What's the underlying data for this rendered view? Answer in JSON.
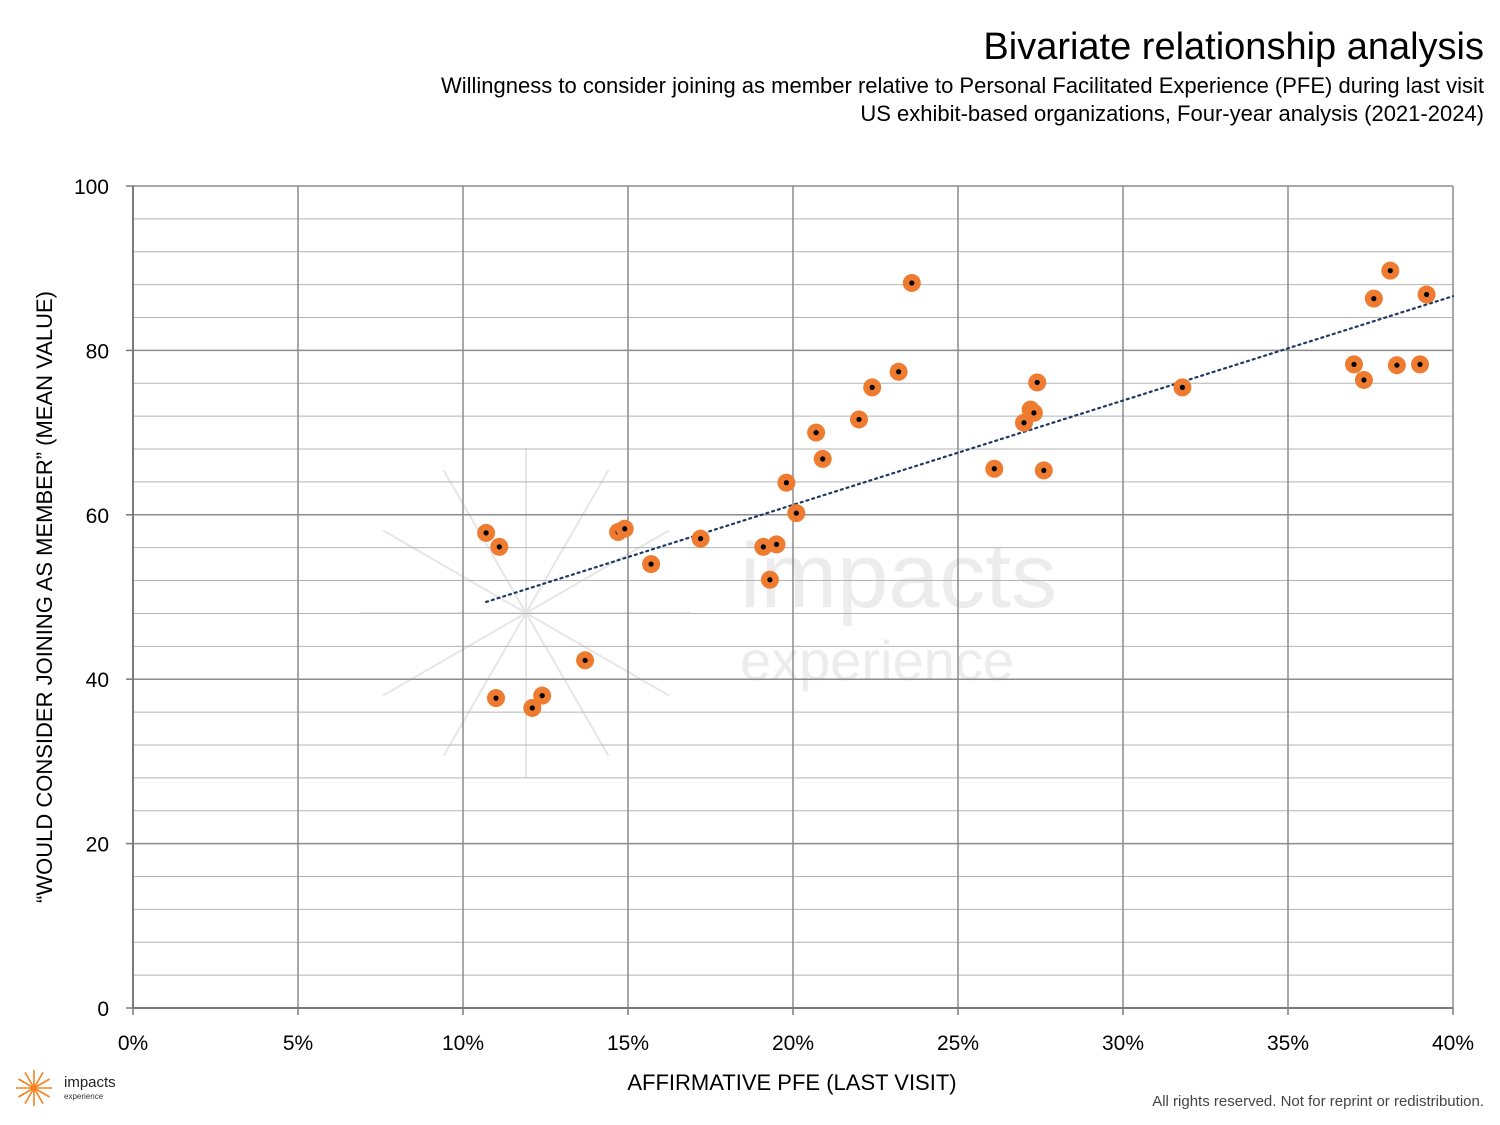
{
  "header": {
    "title": "Bivariate relationship analysis",
    "subtitle_1": "Willingness to consider joining as member relative to Personal Facilitated Experience (PFE) during last visit",
    "subtitle_2": "US exhibit-based organizations, Four-year analysis (2021-2024)"
  },
  "watermark": {
    "line1": "impacts",
    "line2": "experience"
  },
  "logo": {
    "name": "impacts",
    "tagline": "experience",
    "icon": "sunburst-icon"
  },
  "footer": {
    "rights": "All rights reserved. Not for reprint or redistribution."
  },
  "colors": {
    "point": "#ee7b30",
    "point_center": "#000000",
    "trendline": "#1f3864",
    "grid": "#a0a0a0",
    "logo_accent": "#f58220"
  },
  "chart_data": {
    "type": "scatter",
    "xlabel": "AFFIRMATIVE PFE (LAST VISIT)",
    "ylabel": "“WOULD CONSIDER JOINING AS MEMBER” (MEAN VALUE)",
    "xlim": [
      0,
      0.4
    ],
    "ylim": [
      0,
      100
    ],
    "x_ticks": [
      0,
      0.05,
      0.1,
      0.15,
      0.2,
      0.25,
      0.3,
      0.35,
      0.4
    ],
    "x_tick_labels": [
      "0%",
      "5%",
      "10%",
      "15%",
      "20%",
      "25%",
      "30%",
      "35%",
      "40%"
    ],
    "y_ticks": [
      0,
      20,
      40,
      60,
      80,
      100
    ],
    "y_tick_labels": [
      "0",
      "20",
      "40",
      "60",
      "80",
      "100"
    ],
    "grid": true,
    "trendline": {
      "style": "dotted",
      "x": [
        0.107,
        0.4
      ],
      "y": [
        49.4,
        86.6
      ]
    },
    "points": [
      {
        "x": 0.107,
        "y": 57.8
      },
      {
        "x": 0.111,
        "y": 56.1
      },
      {
        "x": 0.11,
        "y": 37.7
      },
      {
        "x": 0.121,
        "y": 36.5
      },
      {
        "x": 0.124,
        "y": 38.0
      },
      {
        "x": 0.137,
        "y": 42.3
      },
      {
        "x": 0.147,
        "y": 57.9
      },
      {
        "x": 0.149,
        "y": 58.3
      },
      {
        "x": 0.157,
        "y": 54.0
      },
      {
        "x": 0.172,
        "y": 57.1
      },
      {
        "x": 0.191,
        "y": 56.1
      },
      {
        "x": 0.195,
        "y": 56.4
      },
      {
        "x": 0.193,
        "y": 52.1
      },
      {
        "x": 0.198,
        "y": 63.9
      },
      {
        "x": 0.201,
        "y": 60.2
      },
      {
        "x": 0.207,
        "y": 70.0
      },
      {
        "x": 0.209,
        "y": 66.8
      },
      {
        "x": 0.22,
        "y": 71.6
      },
      {
        "x": 0.224,
        "y": 75.5
      },
      {
        "x": 0.232,
        "y": 77.4
      },
      {
        "x": 0.236,
        "y": 88.2
      },
      {
        "x": 0.261,
        "y": 65.6
      },
      {
        "x": 0.27,
        "y": 71.2
      },
      {
        "x": 0.272,
        "y": 72.8
      },
      {
        "x": 0.273,
        "y": 72.4
      },
      {
        "x": 0.274,
        "y": 76.1
      },
      {
        "x": 0.276,
        "y": 65.4
      },
      {
        "x": 0.318,
        "y": 75.5
      },
      {
        "x": 0.37,
        "y": 78.3
      },
      {
        "x": 0.373,
        "y": 76.4
      },
      {
        "x": 0.376,
        "y": 86.3
      },
      {
        "x": 0.381,
        "y": 89.7
      },
      {
        "x": 0.383,
        "y": 78.2
      },
      {
        "x": 0.39,
        "y": 78.3
      },
      {
        "x": 0.392,
        "y": 86.8
      }
    ]
  }
}
